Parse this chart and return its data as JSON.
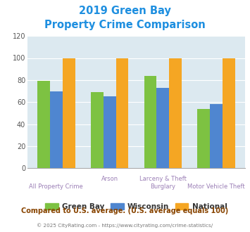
{
  "title_line1": "2019 Green Bay",
  "title_line2": "Property Crime Comparison",
  "title_color": "#1e8fe0",
  "series": {
    "Green Bay": [
      79,
      69,
      84,
      54
    ],
    "Wisconsin": [
      70,
      65,
      73,
      58
    ],
    "National": [
      100,
      100,
      100,
      100
    ]
  },
  "bar_colors": {
    "Green Bay": "#7dc242",
    "Wisconsin": "#4f86d0",
    "National": "#f5a623"
  },
  "ylim": [
    0,
    120
  ],
  "yticks": [
    0,
    20,
    40,
    60,
    80,
    100,
    120
  ],
  "xlabel_color": "#9b7fb6",
  "background_color": "#dce9f0",
  "note": "Compared to U.S. average. (U.S. average equals 100)",
  "note_color": "#884400",
  "copyright_part1": "© 2025 CityRating.com - ",
  "copyright_part2": "https://www.cityrating.com/crime-statistics/",
  "copyright_color1": "#777777",
  "copyright_color2": "#4488bb",
  "x_label_top": [
    "",
    "Arson",
    "Larceny & Theft",
    ""
  ],
  "x_label_bottom": [
    "All Property Crime",
    "",
    "Burglary",
    "Motor Vehicle Theft"
  ],
  "legend_labels": [
    "Green Bay",
    "Wisconsin",
    "National"
  ]
}
